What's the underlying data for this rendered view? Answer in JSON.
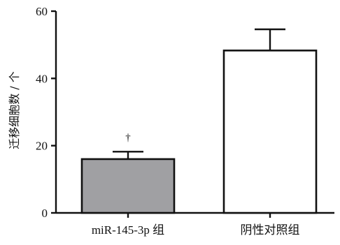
{
  "chart_data": {
    "type": "bar",
    "categories": [
      "miR-145-3p 组",
      "阴性对照组"
    ],
    "values": [
      16,
      48.3
    ],
    "errors": [
      2.2,
      6.3
    ],
    "bar_colors": [
      "#a0a0a3",
      "#ffffff"
    ],
    "ylabel": "迁移细胞数 / 个",
    "xlabel": "",
    "ylim": [
      0,
      60
    ],
    "yticks": [
      0,
      20,
      40,
      60
    ],
    "annotations": [
      {
        "category_index": 0,
        "text": "†"
      }
    ],
    "grid": false,
    "legend": "none"
  }
}
